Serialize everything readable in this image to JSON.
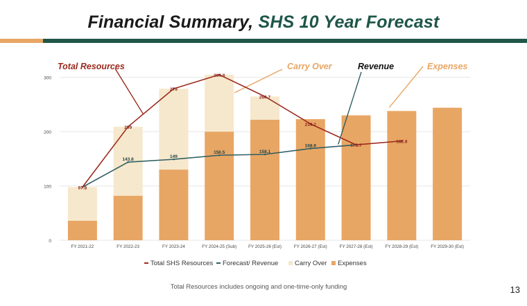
{
  "header": {
    "title_part1": "Financial Summary,",
    "title_part2": "SHS 10 Year Forecast"
  },
  "footer": {
    "note": "Total Resources includes ongoing and one-time-only funding",
    "page_number": "13"
  },
  "colors": {
    "title_dark": "#1a1a1a",
    "title_green": "#1f5648",
    "accent_orange": "#e8a664",
    "expenses": "#e8a664",
    "carry_over": "#f6e8cc",
    "total_resources": "#9b2a1e",
    "revenue": "#2f5f63"
  },
  "chart_data": {
    "type": "bar",
    "categories": [
      "FY 2021-22",
      "FY 2022-23",
      "FY 2023-24",
      "FY 2024-25 (Sub)",
      "FY 2025-26 (Est)",
      "FY 2026-27 (Est)",
      "FY 2027-28 (Est)",
      "FY 2028-29 (Est)",
      "FY 2029-30 (Est)"
    ],
    "ylim": [
      0,
      320
    ],
    "yticks": [
      0,
      100,
      200,
      300
    ],
    "stacked": true,
    "grid": true,
    "series": [
      {
        "name": "Expenses",
        "kind": "bar",
        "values": [
          36,
          82,
          130,
          200,
          222,
          223,
          230,
          238,
          244
        ]
      },
      {
        "name": "Carry Over",
        "kind": "bar",
        "values": [
          61.8,
          127,
          149,
          104.8,
          42.7,
          0,
          0,
          0,
          0
        ]
      },
      {
        "name": "Total SHS Resources",
        "kind": "line",
        "values": [
          97.8,
          209,
          279,
          304.8,
          264.7,
          214.2,
          175.7,
          182.8,
          null
        ],
        "labels": [
          "97.8",
          "209",
          "279",
          "304.8",
          "264.7",
          "214.2",
          "175.7",
          "182.8",
          ""
        ]
      },
      {
        "name": "Forecast/ Revenue",
        "kind": "line",
        "values": [
          97.8,
          143.8,
          149,
          156.5,
          158.1,
          168.9,
          175.7,
          null,
          null
        ],
        "labels": [
          "",
          "143.8",
          "149",
          "156.5",
          "158.1",
          "168.9",
          "",
          "",
          ""
        ]
      }
    ],
    "legend": {
      "placement": "bottom",
      "entries": [
        "Total SHS Resources",
        "Forecast/ Revenue",
        "Carry Over",
        "Expenses"
      ]
    },
    "annotations": [
      {
        "text": "Total Resources",
        "target": "Total SHS Resources"
      },
      {
        "text": "Carry Over",
        "target": "Carry Over"
      },
      {
        "text": "Revenue",
        "target": "Forecast/ Revenue"
      },
      {
        "text": "Expenses",
        "target": "Expenses"
      }
    ]
  }
}
